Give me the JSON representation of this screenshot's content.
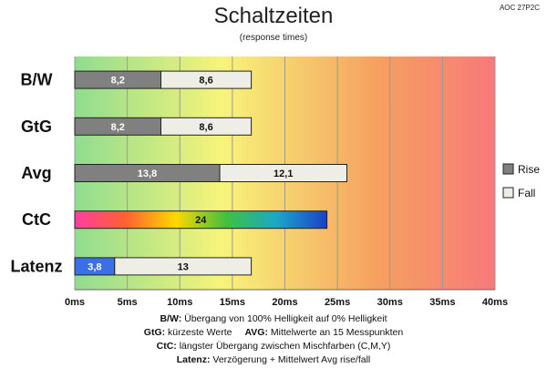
{
  "chart_data": {
    "type": "bar",
    "orientation": "horizontal",
    "stacked": true,
    "title": "Schaltzeiten",
    "subtitle": "(response times)",
    "corner_tag": "AOC 27P2C",
    "categories": [
      "B/W",
      "GtG",
      "Avg",
      "CtC",
      "Latenz"
    ],
    "series": [
      {
        "name": "Rise",
        "color": "#808080",
        "values": [
          8.2,
          8.2,
          13.8,
          null,
          3.8
        ],
        "labels": [
          "8,2",
          "8,2",
          "13,8",
          "",
          "3,8"
        ]
      },
      {
        "name": "Fall",
        "color": "#eeeee6",
        "values": [
          8.6,
          8.6,
          12.1,
          null,
          13
        ],
        "labels": [
          "8,6",
          "8,6",
          "12,1",
          "",
          "13"
        ]
      }
    ],
    "ctc": {
      "value": 24,
      "label": "24",
      "style": "rainbow-gradient"
    },
    "latenz_rise_color": "#3a6fe8",
    "xlim": [
      0,
      40
    ],
    "xticks": [
      0,
      5,
      10,
      15,
      20,
      25,
      30,
      35,
      40
    ],
    "xtick_labels": [
      "0ms",
      "5ms",
      "10ms",
      "15ms",
      "20ms",
      "25ms",
      "30ms",
      "35ms",
      "40ms"
    ],
    "grid": true,
    "background_gradient": [
      "#8fdc8f",
      "#f7f47a",
      "#f6a060",
      "#f77a7a"
    ],
    "legend_position": "right"
  },
  "footnotes": [
    {
      "key": "B/W",
      "text": "Übergang von 100% Helligkeit auf 0% Helligkeit"
    },
    {
      "key": "GtG",
      "text": "kürzeste  Werte"
    },
    {
      "key": "AVG",
      "text": "Mittelwerte  an 15 Messpunkten"
    },
    {
      "key": "CtC",
      "text": "längster Übergang  zwischen Mischfarben  (C,M,Y)"
    },
    {
      "key": "Latenz",
      "text": "Verzögerung  + Mittelwert  Avg rise/fall"
    }
  ]
}
